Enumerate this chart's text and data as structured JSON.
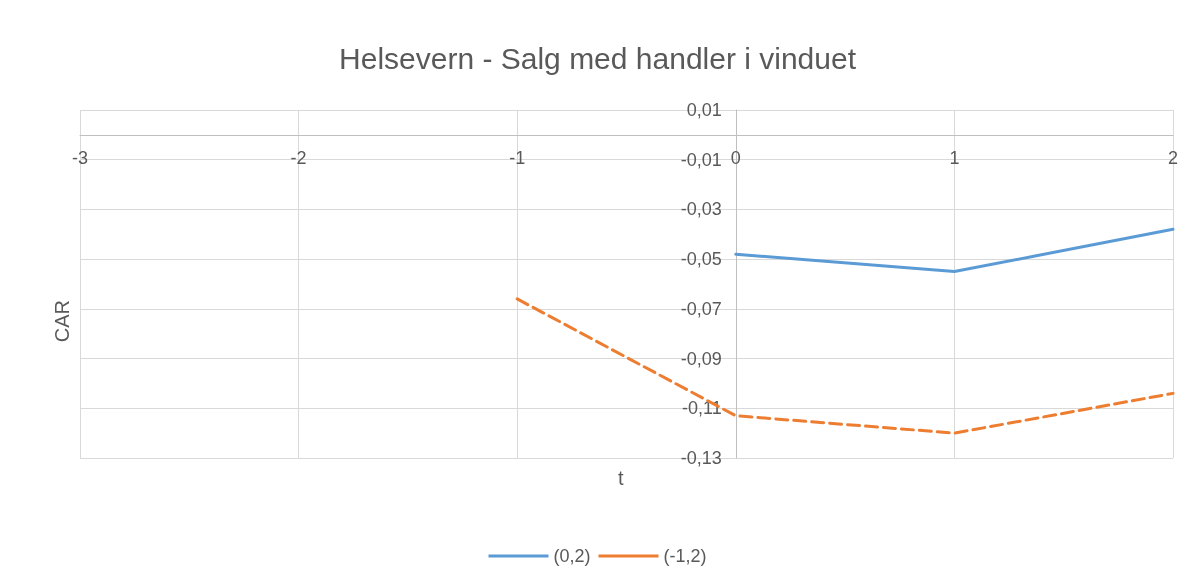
{
  "chart_data": {
    "type": "line",
    "title": "Helsevern - Salg med handler i vinduet",
    "xlabel": "t",
    "ylabel": "CAR",
    "series": [
      {
        "name": "(0,2)",
        "color": "#5b9bd5",
        "x": [
          0,
          1,
          2
        ],
        "values": [
          -0.048,
          -0.055,
          -0.038
        ],
        "line_style": "solid"
      },
      {
        "name": "(-1,2)",
        "color": "#ed7d31",
        "x": [
          -1,
          0,
          1,
          2
        ],
        "values": [
          -0.066,
          -0.113,
          -0.12,
          -0.104
        ],
        "line_style": "dashed"
      }
    ],
    "xlim": [
      -3,
      2
    ],
    "xticks": [
      -3,
      -2,
      -1,
      0,
      1,
      2
    ],
    "ylim": [
      -0.13,
      0.01
    ],
    "yticks": [
      {
        "value": -0.13,
        "label": "-0,13"
      },
      {
        "value": -0.11,
        "label": "-0,11"
      },
      {
        "value": -0.09,
        "label": "-0,09"
      },
      {
        "value": -0.07,
        "label": "-0,07"
      },
      {
        "value": -0.05,
        "label": "-0,05"
      },
      {
        "value": -0.03,
        "label": "-0,03"
      },
      {
        "value": -0.01,
        "label": "-0,01"
      },
      {
        "value": 0.01,
        "label": "0,01"
      }
    ],
    "grid": true,
    "legend": "bottom",
    "marker": "none"
  }
}
